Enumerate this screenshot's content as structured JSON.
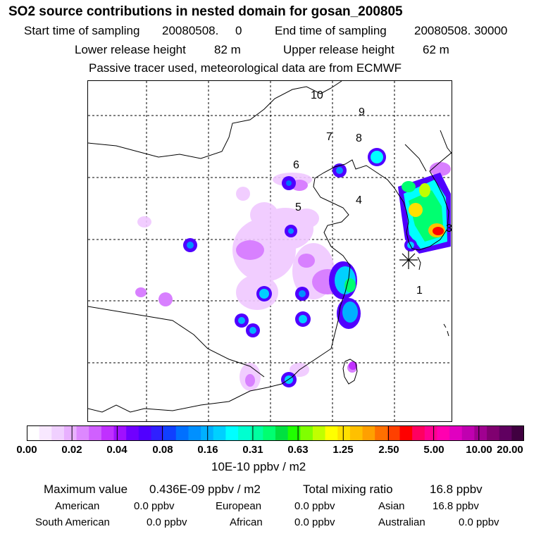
{
  "title": "SO2 source contributions in nested domain for gosan_200805",
  "sampling": {
    "start_label": "Start time of sampling",
    "start_value": "20080508.     0",
    "end_label": "End time of sampling",
    "end_value": "20080508. 30000"
  },
  "release": {
    "lower_label": "Lower release height",
    "lower_value": "82 m",
    "upper_label": "Upper release height",
    "upper_value": "62 m"
  },
  "note": "Passive tracer used, meteorological data are from ECMWF",
  "map": {
    "region_labels": [
      "1",
      "3",
      "4",
      "5",
      "6",
      "7",
      "8",
      "9",
      "10"
    ],
    "receptor_marker": "asterisk"
  },
  "colorbar": {
    "ticks": [
      "0.00",
      "0.02",
      "0.04",
      "0.08",
      "0.16",
      "0.31",
      "0.63",
      "1.25",
      "2.50",
      "5.00",
      "10.00",
      "20.00"
    ],
    "colors": [
      "#ffffff",
      "#f8e8ff",
      "#f0d0ff",
      "#e8b0ff",
      "#dd88ff",
      "#d060ff",
      "#c030ff",
      "#a010ff",
      "#7000ff",
      "#5000ff",
      "#3020ff",
      "#1040ff",
      "#0070ff",
      "#0090ff",
      "#00b0ff",
      "#00d0ff",
      "#00ffff",
      "#00ffd0",
      "#00ffa0",
      "#00ff70",
      "#00e040",
      "#20ff00",
      "#80ff00",
      "#c0ff00",
      "#ffff00",
      "#ffe000",
      "#ffc000",
      "#ffa000",
      "#ff7000",
      "#ff4000",
      "#ff0000",
      "#ff0060",
      "#ff0090",
      "#ff00b0",
      "#e000c0",
      "#c000b0",
      "#a00090",
      "#800070",
      "#600060",
      "#400040"
    ],
    "unit": "10E-10 ppbv / m2"
  },
  "stats": {
    "max_label": "Maximum value",
    "max_value": "0.436E-09 ppbv / m2",
    "total_label": "Total mixing ratio",
    "total_value": "16.8 ppbv"
  },
  "contributions": [
    {
      "name": "American",
      "value": "0.0 ppbv"
    },
    {
      "name": "European",
      "value": "0.0 ppbv"
    },
    {
      "name": "Asian",
      "value": "16.8 ppbv"
    },
    {
      "name": "South American",
      "value": "0.0 ppbv"
    },
    {
      "name": "African",
      "value": "0.0 ppbv"
    },
    {
      "name": "Australian",
      "value": "0.0 ppbv"
    }
  ]
}
